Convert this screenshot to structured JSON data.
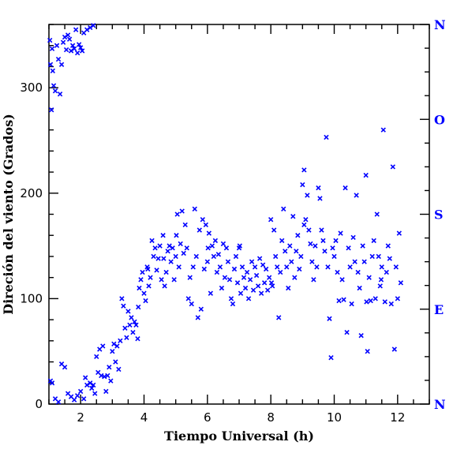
{
  "chart_data": {
    "type": "scatter",
    "xlabel": "Tiempo Universal (h)",
    "ylabel": "Direción del viento (Grados)",
    "xlim": [
      1.0,
      13.0
    ],
    "ylim": [
      0,
      360
    ],
    "x_ticks": [
      2,
      4,
      6,
      8,
      10,
      12
    ],
    "y_ticks": [
      0,
      100,
      200,
      300
    ],
    "right_axis_labels": [
      {
        "value": 360,
        "label": "N"
      },
      {
        "value": 270,
        "label": "O"
      },
      {
        "value": 180,
        "label": "S"
      },
      {
        "value": 90,
        "label": "E"
      },
      {
        "value": 0,
        "label": "N"
      }
    ],
    "marker": "x",
    "colors": {
      "points": "#0000ff",
      "right_labels": "#0000ff",
      "axes": "#000000"
    },
    "grid": false,
    "points": [
      [
        1.03,
        345
      ],
      [
        1.05,
        322
      ],
      [
        1.08,
        279
      ],
      [
        1.1,
        337
      ],
      [
        1.12,
        316
      ],
      [
        1.15,
        302
      ],
      [
        1.2,
        297
      ],
      [
        1.25,
        340
      ],
      [
        1.3,
        327
      ],
      [
        1.35,
        294
      ],
      [
        1.4,
        322
      ],
      [
        1.45,
        343
      ],
      [
        1.5,
        348
      ],
      [
        1.55,
        336
      ],
      [
        1.6,
        350
      ],
      [
        1.65,
        346
      ],
      [
        1.7,
        335
      ],
      [
        1.75,
        340
      ],
      [
        1.8,
        337
      ],
      [
        1.85,
        355
      ],
      [
        1.9,
        333
      ],
      [
        1.95,
        341
      ],
      [
        2.0,
        338
      ],
      [
        2.05,
        335
      ],
      [
        2.1,
        352
      ],
      [
        2.2,
        355
      ],
      [
        2.3,
        357
      ],
      [
        2.4,
        359
      ],
      [
        1.05,
        22
      ],
      [
        1.1,
        20
      ],
      [
        1.2,
        5
      ],
      [
        1.3,
        2
      ],
      [
        1.4,
        38
      ],
      [
        1.5,
        35
      ],
      [
        1.6,
        10
      ],
      [
        1.7,
        7
      ],
      [
        1.8,
        4
      ],
      [
        1.9,
        8
      ],
      [
        2.0,
        12
      ],
      [
        2.1,
        5
      ],
      [
        2.15,
        25
      ],
      [
        2.2,
        18
      ],
      [
        2.3,
        20
      ],
      [
        2.35,
        15
      ],
      [
        2.4,
        18
      ],
      [
        2.45,
        10
      ],
      [
        2.5,
        45
      ],
      [
        2.55,
        30
      ],
      [
        2.6,
        52
      ],
      [
        2.65,
        27
      ],
      [
        2.7,
        55
      ],
      [
        2.75,
        26
      ],
      [
        2.8,
        12
      ],
      [
        2.85,
        27
      ],
      [
        2.9,
        35
      ],
      [
        2.95,
        22
      ],
      [
        3.0,
        50
      ],
      [
        3.05,
        57
      ],
      [
        3.1,
        40
      ],
      [
        3.15,
        55
      ],
      [
        3.2,
        33
      ],
      [
        3.25,
        60
      ],
      [
        3.3,
        100
      ],
      [
        3.35,
        93
      ],
      [
        3.4,
        72
      ],
      [
        3.45,
        63
      ],
      [
        3.5,
        88
      ],
      [
        3.55,
        75
      ],
      [
        3.6,
        82
      ],
      [
        3.65,
        68
      ],
      [
        3.7,
        78
      ],
      [
        3.75,
        75
      ],
      [
        3.8,
        62
      ],
      [
        3.85,
        110
      ],
      [
        3.9,
        118
      ],
      [
        3.95,
        125
      ],
      [
        4.0,
        105
      ],
      [
        4.05,
        98
      ],
      [
        4.1,
        130
      ],
      [
        4.15,
        112
      ],
      [
        4.2,
        120
      ],
      [
        4.25,
        155
      ],
      [
        4.3,
        140
      ],
      [
        4.35,
        148
      ],
      [
        4.4,
        127
      ],
      [
        4.45,
        138
      ],
      [
        4.5,
        150
      ],
      [
        4.55,
        118
      ],
      [
        4.6,
        160
      ],
      [
        4.65,
        112
      ],
      [
        4.7,
        125
      ],
      [
        4.75,
        145
      ],
      [
        4.8,
        150
      ],
      [
        4.85,
        135
      ],
      [
        4.9,
        148
      ],
      [
        4.95,
        118
      ],
      [
        5.0,
        140
      ],
      [
        5.05,
        180
      ],
      [
        5.1,
        130
      ],
      [
        5.15,
        152
      ],
      [
        5.2,
        183
      ],
      [
        5.25,
        143
      ],
      [
        5.3,
        170
      ],
      [
        5.35,
        148
      ],
      [
        5.4,
        100
      ],
      [
        5.45,
        120
      ],
      [
        5.5,
        95
      ],
      [
        5.55,
        130
      ],
      [
        5.6,
        185
      ],
      [
        5.65,
        140
      ],
      [
        5.7,
        82
      ],
      [
        5.75,
        165
      ],
      [
        5.8,
        90
      ],
      [
        5.85,
        175
      ],
      [
        5.9,
        128
      ],
      [
        5.95,
        170
      ],
      [
        6.0,
        135
      ],
      [
        6.05,
        162
      ],
      [
        6.1,
        105
      ],
      [
        6.15,
        150
      ],
      [
        6.2,
        140
      ],
      [
        6.25,
        155
      ],
      [
        6.3,
        125
      ],
      [
        6.35,
        142
      ],
      [
        6.4,
        130
      ],
      [
        6.45,
        110
      ],
      [
        6.5,
        152
      ],
      [
        6.55,
        120
      ],
      [
        6.6,
        148
      ],
      [
        6.65,
        135
      ],
      [
        6.7,
        118
      ],
      [
        6.75,
        100
      ],
      [
        6.8,
        95
      ],
      [
        6.85,
        128
      ],
      [
        6.9,
        140
      ],
      [
        6.95,
        115
      ],
      [
        7.0,
        148
      ],
      [
        7.05,
        105
      ],
      [
        7.1,
        130
      ],
      [
        7.15,
        120
      ],
      [
        7.2,
        110
      ],
      [
        7.25,
        125
      ],
      [
        7.3,
        100
      ],
      [
        7.35,
        118
      ],
      [
        7.4,
        135
      ],
      [
        7.45,
        108
      ],
      [
        7.5,
        130
      ],
      [
        7.55,
        122
      ],
      [
        7.6,
        112
      ],
      [
        7.65,
        138
      ],
      [
        7.7,
        105
      ],
      [
        7.75,
        132
      ],
      [
        7.8,
        115
      ],
      [
        7.85,
        128
      ],
      [
        7.9,
        108
      ],
      [
        7.95,
        120
      ],
      [
        8.0,
        175
      ],
      [
        8.05,
        112
      ],
      [
        8.1,
        165
      ],
      [
        8.15,
        140
      ],
      [
        8.2,
        130
      ],
      [
        8.25,
        82
      ],
      [
        8.3,
        125
      ],
      [
        8.35,
        155
      ],
      [
        8.4,
        185
      ],
      [
        8.45,
        145
      ],
      [
        8.5,
        130
      ],
      [
        8.55,
        110
      ],
      [
        8.6,
        150
      ],
      [
        8.65,
        135
      ],
      [
        8.7,
        178
      ],
      [
        8.75,
        120
      ],
      [
        8.8,
        145
      ],
      [
        8.85,
        160
      ],
      [
        8.9,
        128
      ],
      [
        8.95,
        140
      ],
      [
        9.0,
        208
      ],
      [
        9.05,
        222
      ],
      [
        9.1,
        175
      ],
      [
        9.15,
        198
      ],
      [
        9.2,
        165
      ],
      [
        9.25,
        152
      ],
      [
        9.3,
        135
      ],
      [
        9.35,
        118
      ],
      [
        9.4,
        150
      ],
      [
        9.45,
        130
      ],
      [
        9.5,
        205
      ],
      [
        9.55,
        195
      ],
      [
        9.6,
        165
      ],
      [
        9.65,
        155
      ],
      [
        9.7,
        145
      ],
      [
        9.75,
        253
      ],
      [
        9.8,
        130
      ],
      [
        9.85,
        81
      ],
      [
        9.9,
        44
      ],
      [
        9.95,
        148
      ],
      [
        10.0,
        140
      ],
      [
        10.05,
        155
      ],
      [
        10.1,
        125
      ],
      [
        10.15,
        98
      ],
      [
        10.2,
        162
      ],
      [
        10.25,
        118
      ],
      [
        10.3,
        99
      ],
      [
        10.35,
        205
      ],
      [
        10.4,
        68
      ],
      [
        10.45,
        148
      ],
      [
        10.5,
        130
      ],
      [
        10.55,
        95
      ],
      [
        10.6,
        158
      ],
      [
        10.65,
        135
      ],
      [
        10.7,
        198
      ],
      [
        10.75,
        125
      ],
      [
        10.8,
        110
      ],
      [
        10.85,
        65
      ],
      [
        10.9,
        150
      ],
      [
        10.95,
        135
      ],
      [
        11.0,
        217
      ],
      [
        11.05,
        50
      ],
      [
        11.1,
        120
      ],
      [
        11.15,
        98
      ],
      [
        11.2,
        140
      ],
      [
        11.25,
        155
      ],
      [
        11.3,
        100
      ],
      [
        11.35,
        180
      ],
      [
        11.4,
        140
      ],
      [
        11.45,
        112
      ],
      [
        11.5,
        130
      ],
      [
        11.55,
        260
      ],
      [
        11.6,
        97
      ],
      [
        11.65,
        125
      ],
      [
        11.7,
        150
      ],
      [
        11.75,
        138
      ],
      [
        11.8,
        95
      ],
      [
        11.85,
        225
      ],
      [
        11.9,
        52
      ],
      [
        11.95,
        130
      ],
      [
        12.0,
        100
      ],
      [
        12.05,
        162
      ],
      [
        12.1,
        115
      ],
      [
        11.02,
        97
      ],
      [
        11.48,
        118
      ],
      [
        9.05,
        170
      ],
      [
        8.02,
        115
      ],
      [
        7.02,
        150
      ],
      [
        6.02,
        148
      ],
      [
        5.02,
        160
      ],
      [
        4.62,
        138
      ],
      [
        4.12,
        128
      ],
      [
        3.82,
        92
      ]
    ]
  }
}
